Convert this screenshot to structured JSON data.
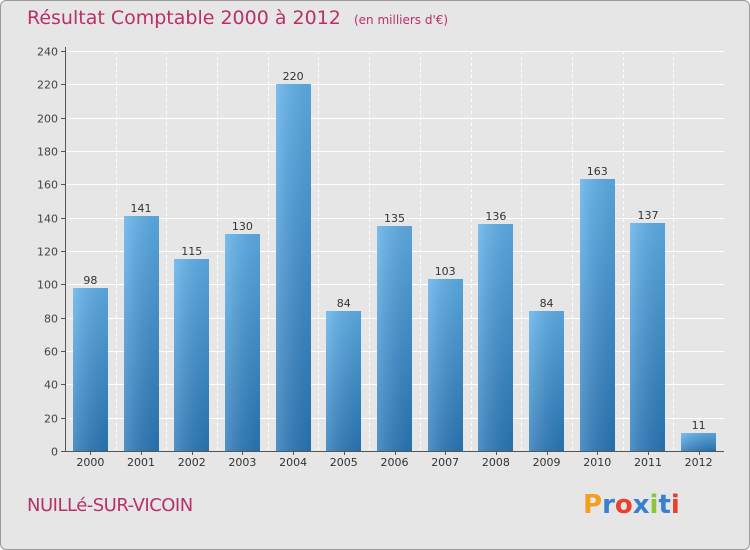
{
  "title": "Résultat Comptable 2000 à 2012",
  "unit": "(en milliers d'€)",
  "commune": "NUILLé-SUR-VICOIN",
  "logo": {
    "letters": [
      "P",
      "r",
      "o",
      "x",
      "i",
      "t",
      "i"
    ],
    "colors": [
      "#f0a01e",
      "#3a7fd0",
      "#e8402a",
      "#3a7fd0",
      "#8cc63f",
      "#3a7fd0",
      "#e8402a"
    ]
  },
  "colors": {
    "bar_top": "#5fb0ea",
    "bar_bottom": "#2a78b8",
    "title": "#b8306a",
    "background": "#e6e6e6"
  },
  "chart_data": {
    "type": "bar",
    "title": "Résultat Comptable 2000 à 2012",
    "subtitle": "(en milliers d'€)",
    "xlabel": "",
    "ylabel": "",
    "categories": [
      "2000",
      "2001",
      "2002",
      "2003",
      "2004",
      "2005",
      "2006",
      "2007",
      "2008",
      "2009",
      "2010",
      "2011",
      "2012"
    ],
    "values": [
      98,
      141,
      115,
      130,
      220,
      84,
      135,
      103,
      136,
      84,
      163,
      137,
      11
    ],
    "ylim": [
      0,
      240
    ],
    "yticks": [
      0,
      20,
      40,
      60,
      80,
      100,
      120,
      140,
      160,
      180,
      200,
      220,
      240
    ],
    "grid": true,
    "legend": "none"
  }
}
